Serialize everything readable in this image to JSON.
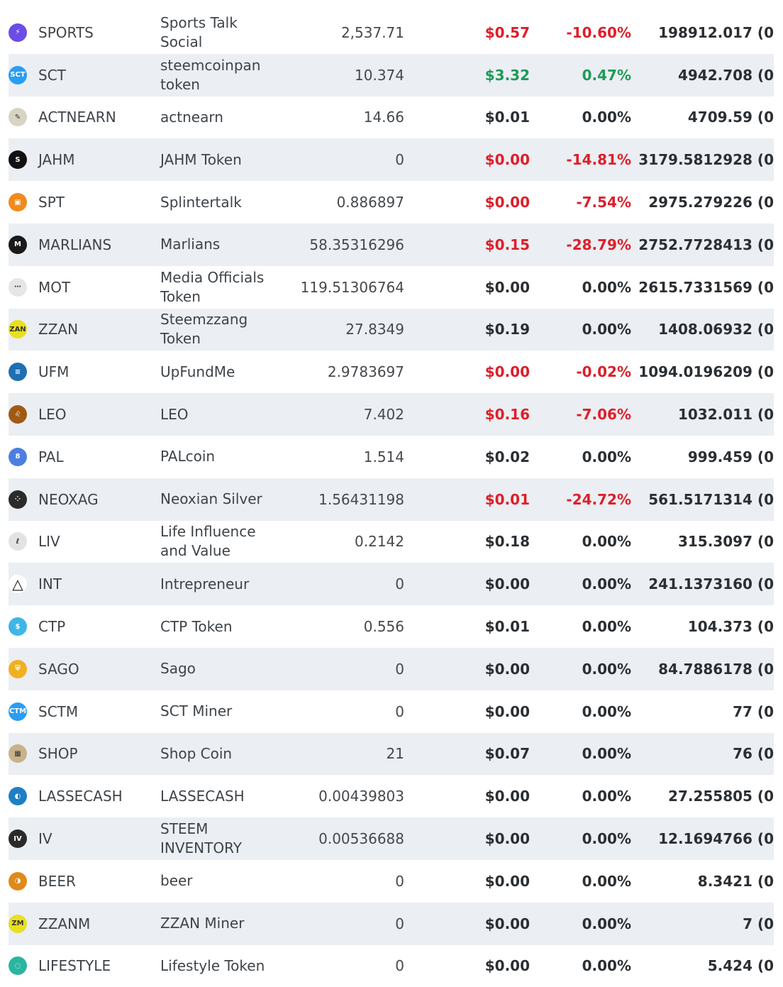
{
  "tokens": [
    {
      "symbol": "SPORTS",
      "name": "Sports Talk Social",
      "balance": "2,537.71",
      "price": "$0.57",
      "change": "-10.60%",
      "value": "198912.017 (0",
      "trend": "neg",
      "icon": "sports-bolt-icon",
      "icon_color": "#6b4de6",
      "icon_glyph": "⚡"
    },
    {
      "symbol": "SCT",
      "name": "steemcoinpan token",
      "balance": "10.374",
      "price": "$3.32",
      "change": "0.47%",
      "value": "4942.708 (0",
      "trend": "pos",
      "icon": "sct-coin-icon",
      "icon_color": "#2a9df4",
      "icon_glyph": "SCT"
    },
    {
      "symbol": "ACTNEARN",
      "name": "actnearn",
      "balance": "14.66",
      "price": "$0.01",
      "change": "0.00%",
      "value": "4709.59 (0",
      "trend": "flat",
      "icon": "actnearn-sketch-icon",
      "icon_color": "#d9d3c4",
      "icon_glyph": "✎"
    },
    {
      "symbol": "JAHM",
      "name": "JAHM Token",
      "balance": "0",
      "price": "$0.00",
      "change": "-14.81%",
      "value": "3179.5812928 (0",
      "trend": "neg",
      "icon": "jahm-flame-icon",
      "icon_color": "#111111",
      "icon_glyph": "S"
    },
    {
      "symbol": "SPT",
      "name": "Splintertalk",
      "balance": "0.886897",
      "price": "$0.00",
      "change": "-7.54%",
      "value": "2975.279226 (0",
      "trend": "neg",
      "icon": "splintertalk-chat-icon",
      "icon_color": "#f08a1c",
      "icon_glyph": "▣"
    },
    {
      "symbol": "MARLIANS",
      "name": "Marlians",
      "balance": "58.35316296",
      "price": "$0.15",
      "change": "-28.79%",
      "value": "2752.7728413 (0",
      "trend": "neg",
      "icon": "marlians-alien-icon",
      "icon_color": "#1a1a1a",
      "icon_glyph": "M"
    },
    {
      "symbol": "MOT",
      "name": "Media Officials Token",
      "balance": "119.51306764",
      "price": "$0.00",
      "change": "0.00%",
      "value": "2615.7331569 (0",
      "trend": "flat",
      "icon": "mot-dashes-icon",
      "icon_color": "#e6e6e6",
      "icon_glyph": "⋯"
    },
    {
      "symbol": "ZZAN",
      "name": "Steemzzang Token",
      "balance": "27.8349",
      "price": "$0.19",
      "change": "0.00%",
      "value": "1408.06932 (0",
      "trend": "flat",
      "icon": "zzan-coin-icon",
      "icon_color": "#e8e020",
      "icon_glyph": "ZAN"
    },
    {
      "symbol": "UFM",
      "name": "UpFundMe",
      "balance": "2.9783697",
      "price": "$0.00",
      "change": "-0.02%",
      "value": "1094.0196209 (0",
      "trend": "neg",
      "icon": "upfundme-bars-icon",
      "icon_color": "#1f6fb4",
      "icon_glyph": "≡"
    },
    {
      "symbol": "LEO",
      "name": "LEO",
      "balance": "7.402",
      "price": "$0.16",
      "change": "-7.06%",
      "value": "1032.011 (0",
      "trend": "neg",
      "icon": "leo-lion-icon",
      "icon_color": "#a05a14",
      "icon_glyph": "♌"
    },
    {
      "symbol": "PAL",
      "name": "PALcoin",
      "balance": "1.514",
      "price": "$0.02",
      "change": "0.00%",
      "value": "999.459 (0",
      "trend": "flat",
      "icon": "palcoin-icon",
      "icon_color": "#4d7fe0",
      "icon_glyph": "8"
    },
    {
      "symbol": "NEOXAG",
      "name": "Neoxian Silver",
      "balance": "1.56431198",
      "price": "$0.01",
      "change": "-24.72%",
      "value": "561.5171314 (0",
      "trend": "neg",
      "icon": "neoxag-dice-icon",
      "icon_color": "#2b2b2b",
      "icon_glyph": "⁘"
    },
    {
      "symbol": "LIV",
      "name": "Life Influence and Value",
      "balance": "0.2142",
      "price": "$0.18",
      "change": "0.00%",
      "value": "315.3097 (0",
      "trend": "flat",
      "icon": "liv-script-icon",
      "icon_color": "#e3e3e3",
      "icon_glyph": "ℓ"
    },
    {
      "symbol": "INT",
      "name": "Intrepreneur",
      "balance": "0",
      "price": "$0.00",
      "change": "0.00%",
      "value": "241.1373160 (0",
      "trend": "flat",
      "icon": "int-triangle-icon",
      "icon_color": "#ffffff",
      "icon_glyph": "△"
    },
    {
      "symbol": "CTP",
      "name": "CTP Token",
      "balance": "0.556",
      "price": "$0.01",
      "change": "0.00%",
      "value": "104.373 (0",
      "trend": "flat",
      "icon": "ctp-dollar-icon",
      "icon_color": "#3db6e8",
      "icon_glyph": "$"
    },
    {
      "symbol": "SAGO",
      "name": "Sago",
      "balance": "0",
      "price": "$0.00",
      "change": "0.00%",
      "value": "84.7886178 (0",
      "trend": "flat",
      "icon": "sago-shield-icon",
      "icon_color": "#f0b020",
      "icon_glyph": "⛨"
    },
    {
      "symbol": "SCTM",
      "name": "SCT Miner",
      "balance": "0",
      "price": "$0.00",
      "change": "0.00%",
      "value": "77 (0",
      "trend": "flat",
      "icon": "sctm-coin-icon",
      "icon_color": "#2a9df4",
      "icon_glyph": "CTM"
    },
    {
      "symbol": "SHOP",
      "name": "Shop Coin",
      "balance": "21",
      "price": "$0.07",
      "change": "0.00%",
      "value": "76 (0",
      "trend": "flat",
      "icon": "shop-store-icon",
      "icon_color": "#c9b28a",
      "icon_glyph": "▦"
    },
    {
      "symbol": "LASSECASH",
      "name": "LASSECASH",
      "balance": "0.00439803",
      "price": "$0.00",
      "change": "0.00%",
      "value": "27.255805 (0",
      "trend": "flat",
      "icon": "lassecash-globe-icon",
      "icon_color": "#1f7fc4",
      "icon_glyph": "◐"
    },
    {
      "symbol": "IV",
      "name": "STEEM INVENTORY",
      "balance": "0.00536688",
      "price": "$0.00",
      "change": "0.00%",
      "value": "12.1694766 (0",
      "trend": "flat",
      "icon": "iv-coin-icon",
      "icon_color": "#2a2a2a",
      "icon_glyph": "IV"
    },
    {
      "symbol": "BEER",
      "name": "beer",
      "balance": "0",
      "price": "$0.00",
      "change": "0.00%",
      "value": "8.3421 (0",
      "trend": "flat",
      "icon": "beer-mug-icon",
      "icon_color": "#e08a1a",
      "icon_glyph": "◑"
    },
    {
      "symbol": "ZZANM",
      "name": "ZZAN Miner",
      "balance": "0",
      "price": "$0.00",
      "change": "0.00%",
      "value": "7 (0",
      "trend": "flat",
      "icon": "zzanm-coin-icon",
      "icon_color": "#e8e020",
      "icon_glyph": "ZM"
    },
    {
      "symbol": "LIFESTYLE",
      "name": "Lifestyle Token",
      "balance": "0",
      "price": "$0.00",
      "change": "0.00%",
      "value": "5.424 (0",
      "trend": "flat",
      "icon": "lifestyle-ring-icon",
      "icon_color": "#2ab5a0",
      "icon_glyph": "◌"
    }
  ]
}
